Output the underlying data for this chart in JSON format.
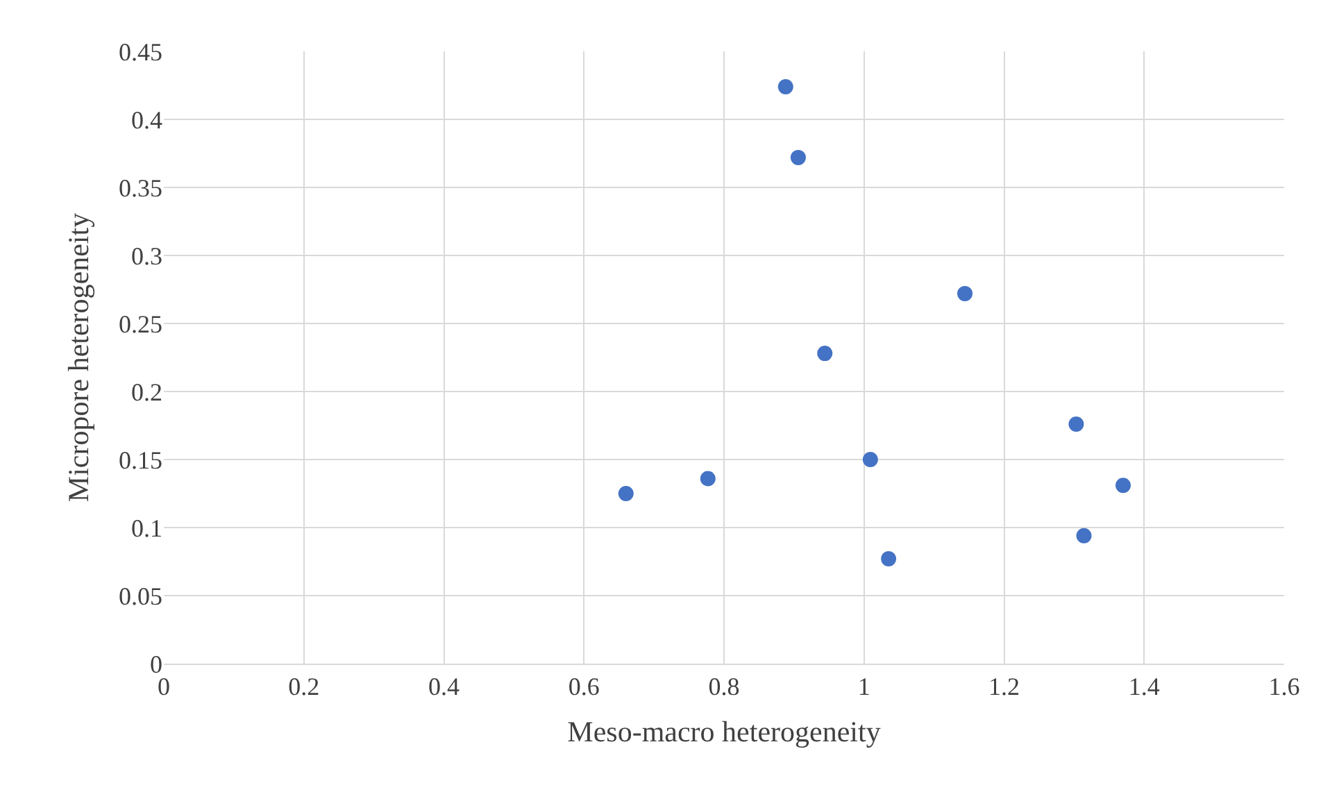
{
  "chart_data": {
    "type": "scatter",
    "xlabel": "Meso-macro heterogeneity",
    "ylabel": "Micropore heterogeneity",
    "x": [
      0.66,
      0.777,
      0.888,
      0.906,
      0.944,
      1.009,
      1.035,
      1.144,
      1.303,
      1.314,
      1.37
    ],
    "series": [
      {
        "color": "#4472c4",
        "values": [
          0.125,
          0.136,
          0.424,
          0.372,
          0.228,
          0.15,
          0.077,
          0.272,
          0.176,
          0.094,
          0.131
        ]
      }
    ],
    "xlim": [
      0,
      1.6
    ],
    "xticks": [
      0,
      0.2,
      0.4,
      0.6,
      0.8,
      1,
      1.2,
      1.4,
      1.6
    ],
    "ylim": [
      0,
      0.45
    ],
    "yticks": [
      0,
      0.05,
      0.1,
      0.15,
      0.2,
      0.25,
      0.3,
      0.35,
      0.4,
      0.45
    ],
    "grid": true,
    "legend": false,
    "marker": "circle"
  }
}
